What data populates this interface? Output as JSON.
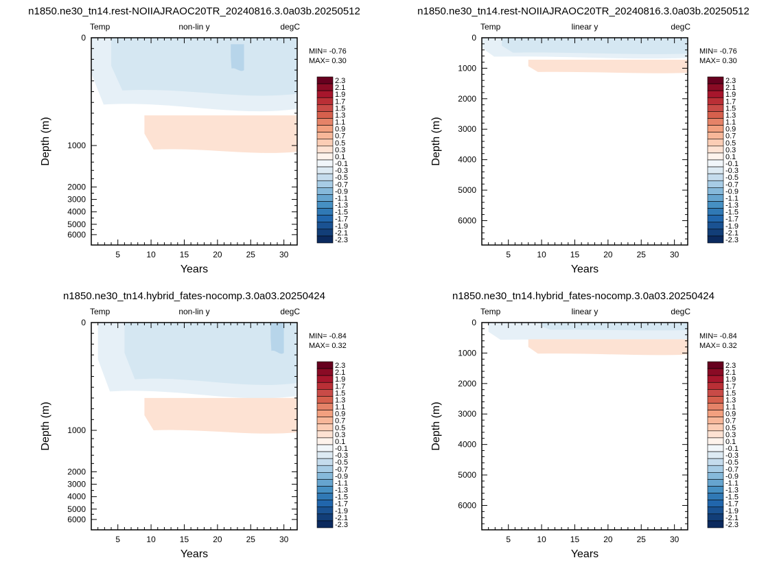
{
  "colors": {
    "warm": "#fde2d3",
    "cool_1": "#e6f0f7",
    "cool_2": "#d5e7f2",
    "cool_3": "#b7d5ea",
    "frame": "#000000"
  },
  "colorbar": {
    "labels": [
      "2.3",
      "2.1",
      "1.9",
      "1.7",
      "1.5",
      "1.3",
      "1.1",
      "0.9",
      "0.7",
      "0.5",
      "0.3",
      "0.1",
      "-0.1",
      "-0.3",
      "-0.5",
      "-0.7",
      "-0.9",
      "-1.1",
      "-1.3",
      "-1.5",
      "-1.7",
      "-1.9",
      "-2.1",
      "-2.3"
    ],
    "colors": [
      "#67001f",
      "#8a0b25",
      "#a7162c",
      "#ba2f36",
      "#c94b47",
      "#d6604d",
      "#e58368",
      "#f2a07f",
      "#f7b799",
      "#fbcdb5",
      "#fde2d3",
      "#fef3ec",
      "#f1f6fa",
      "#ddeaf3",
      "#c5dced",
      "#a7cce5",
      "#86b9da",
      "#66a5cf",
      "#4690c3",
      "#3079b5",
      "#2166ac",
      "#1a5292",
      "#123e78",
      "#0b2a5e"
    ]
  },
  "chart_data": [
    {
      "type": "heatmap",
      "title": "n1850.ne30_tn14.rest-NOIIAJRAOC20TR_20240816.3.0a03b.20250512",
      "left_label": "Temp",
      "center_label": "non-lin y",
      "right_label": "degC",
      "xlabel": "Years",
      "ylabel": "Depth (m)",
      "xlim": [
        1,
        32
      ],
      "ylim": [
        6500,
        0
      ],
      "y_scale": "non-linear",
      "x_ticks": [
        "5",
        "10",
        "15",
        "20",
        "25",
        "30"
      ],
      "y_ticks": [
        "0",
        "1000",
        "2000",
        "3000",
        "4000",
        "5000",
        "6000"
      ],
      "min_text": "MIN= -0.76",
      "max_text": "MAX=  0.30",
      "contours": [
        {
          "level": "-0.1 to -0.3",
          "color": "cool_1",
          "years": [
            1,
            32
          ],
          "depth": [
            0,
            660
          ]
        },
        {
          "level": "-0.3 to -0.5",
          "color": "cool_2",
          "years": [
            4,
            32
          ],
          "depth": [
            0,
            520
          ]
        },
        {
          "level": "-0.5 to -0.7",
          "color": "cool_3",
          "years": [
            22,
            24
          ],
          "depth": [
            60,
            300
          ]
        },
        {
          "level": "0.1 to 0.3",
          "color": "warm",
          "years": [
            9,
            32
          ],
          "depth": [
            720,
            1150
          ]
        }
      ]
    },
    {
      "type": "heatmap",
      "title": "n1850.ne30_tn14.rest-NOIIAJRAOC20TR_20240816.3.0a03b.20250512",
      "left_label": "Temp",
      "center_label": "linear y",
      "right_label": "degC",
      "xlabel": "Years",
      "ylabel": "Depth (m)",
      "xlim": [
        1,
        32
      ],
      "ylim": [
        6800,
        0
      ],
      "y_scale": "linear",
      "x_ticks": [
        "5",
        "10",
        "15",
        "20",
        "25",
        "30"
      ],
      "y_ticks": [
        "0",
        "1000",
        "2000",
        "3000",
        "4000",
        "5000",
        "6000"
      ],
      "min_text": "MIN= -0.76",
      "max_text": "MAX=  0.30",
      "contours": [
        {
          "level": "-0.1 to -0.3",
          "color": "cool_1",
          "years": [
            1,
            32
          ],
          "depth": [
            0,
            660
          ]
        },
        {
          "level": "-0.3 to -0.5",
          "color": "cool_2",
          "years": [
            4,
            32
          ],
          "depth": [
            0,
            520
          ]
        },
        {
          "level": "0.1 to 0.3",
          "color": "warm",
          "years": [
            8,
            32
          ],
          "depth": [
            720,
            1150
          ]
        }
      ]
    },
    {
      "type": "heatmap",
      "title": "n1850.ne30_tn14.hybrid_fates-nocomp.3.0a03.20250424",
      "left_label": "Temp",
      "center_label": "non-lin y",
      "right_label": "degC",
      "xlabel": "Years",
      "ylabel": "Depth (m)",
      "xlim": [
        1,
        32
      ],
      "ylim": [
        6500,
        0
      ],
      "y_scale": "non-linear",
      "x_ticks": [
        "5",
        "10",
        "15",
        "20",
        "25",
        "30"
      ],
      "y_ticks": [
        "0",
        "1000",
        "2000",
        "3000",
        "4000",
        "5000",
        "6000"
      ],
      "min_text": "MIN= -0.84",
      "max_text": "MAX=  0.32",
      "contours": [
        {
          "level": "-0.1 to -0.3",
          "color": "cool_1",
          "years": [
            2,
            32
          ],
          "depth": [
            0,
            680
          ]
        },
        {
          "level": "-0.3 to -0.5",
          "color": "cool_2",
          "years": [
            6,
            32
          ],
          "depth": [
            0,
            560
          ]
        },
        {
          "level": "-0.5 to -0.7",
          "color": "cool_3",
          "years": [
            28,
            30
          ],
          "depth": [
            0,
            280
          ]
        },
        {
          "level": "0.1 to 0.3",
          "color": "warm",
          "years": [
            9,
            32
          ],
          "depth": [
            700,
            1050
          ]
        }
      ]
    },
    {
      "type": "heatmap",
      "title": "n1850.ne30_tn14.hybrid_fates-nocomp.3.0a03.20250424",
      "left_label": "Temp",
      "center_label": "linear y",
      "right_label": "degC",
      "xlabel": "Years",
      "ylabel": "Depth (m)",
      "xlim": [
        1,
        32
      ],
      "ylim": [
        6800,
        0
      ],
      "y_scale": "linear",
      "x_ticks": [
        "5",
        "10",
        "15",
        "20",
        "25",
        "30"
      ],
      "y_ticks": [
        "0",
        "1000",
        "2000",
        "3000",
        "4000",
        "5000",
        "6000"
      ],
      "min_text": "MIN= -0.84",
      "max_text": "MAX=  0.32",
      "contours": [
        {
          "level": "-0.1 to -0.3",
          "color": "cool_1",
          "years": [
            2,
            32
          ],
          "depth": [
            0,
            600
          ]
        },
        {
          "level": "-0.3 to -0.5",
          "color": "cool_2",
          "years": [
            10,
            32
          ],
          "depth": [
            0,
            250
          ]
        },
        {
          "level": "0.1 to 0.3",
          "color": "warm",
          "years": [
            8,
            32
          ],
          "depth": [
            550,
            1050
          ]
        }
      ]
    }
  ]
}
